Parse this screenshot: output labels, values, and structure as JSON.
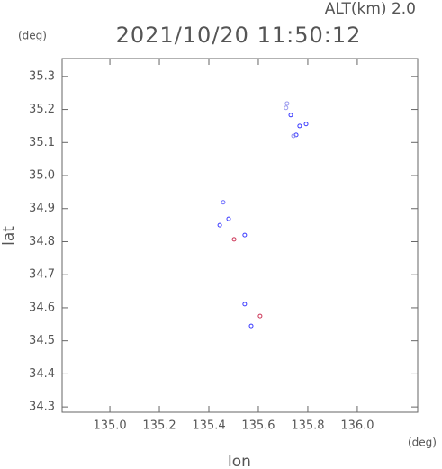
{
  "chart_data": {
    "type": "scatter",
    "title": "2021/10/20 11:50:12",
    "annotation": "ALT(km) 2.0",
    "x_label": "lon",
    "y_label": "lat",
    "x_unit": "(deg)",
    "y_unit": "(deg)",
    "x": [
      135.716,
      135.712,
      135.731,
      135.767,
      135.793,
      135.753,
      135.742,
      135.458,
      135.48,
      135.444,
      135.502,
      135.545,
      135.545,
      135.607,
      135.571
    ],
    "values": [
      35.218,
      35.205,
      35.183,
      35.15,
      35.156,
      35.123,
      35.12,
      34.919,
      34.869,
      34.85,
      34.807,
      34.82,
      34.611,
      34.575,
      34.545
    ],
    "colors": [
      "#9a9aee",
      "#9a9aee",
      "#3a3aff",
      "#3a3aff",
      "#3a3aff",
      "#3a3aff",
      "#8f8fee",
      "#6a6aff",
      "#3a3aff",
      "#3a3aff",
      "#cc3355",
      "#3a3aff",
      "#3a3aff",
      "#cc3355",
      "#3a3aff"
    ],
    "xlim": [
      134.807,
      136.244
    ],
    "ylim": [
      34.284,
      35.354
    ],
    "xticks": [
      {
        "value": 135,
        "label": "135.0"
      },
      135.2,
      135.4,
      135.6,
      135.8,
      {
        "value": 136,
        "label": "136.0"
      }
    ],
    "yticks": [
      34.3,
      34.4,
      34.5,
      34.6,
      34.7,
      34.8,
      34.9,
      {
        "value": 35,
        "label": "35.0"
      },
      35.1,
      35.2,
      35.3
    ]
  }
}
